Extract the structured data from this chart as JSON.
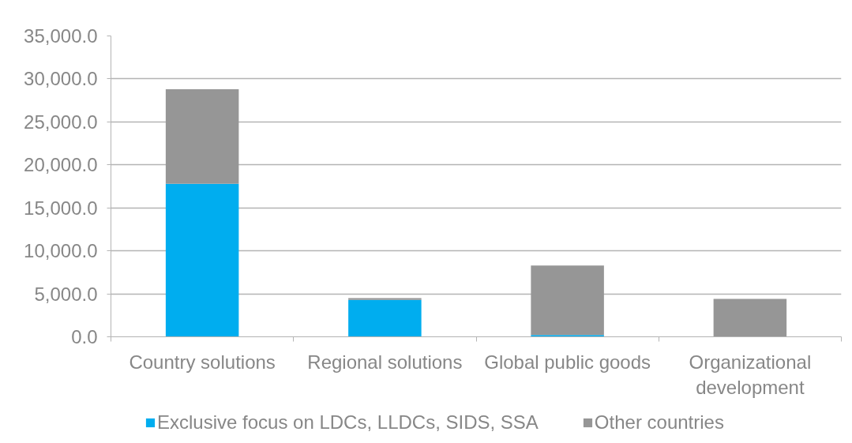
{
  "chart_data": {
    "type": "bar",
    "stacked": true,
    "categories": [
      "Country solutions",
      "Regional solutions",
      "Global public goods",
      "Organizational development"
    ],
    "series": [
      {
        "name": "Exclusive focus on LDCs, LLDCs, SIDS, SSA",
        "color": "#00adef",
        "values": [
          17800,
          4300,
          200,
          0
        ]
      },
      {
        "name": "Other countries",
        "color": "#969696",
        "values": [
          11000,
          200,
          8100,
          4400
        ]
      }
    ],
    "ylim": [
      0,
      35000
    ],
    "yticks": [
      {
        "value": 0,
        "label": "0.0"
      },
      {
        "value": 5000,
        "label": "5,000.0"
      },
      {
        "value": 10000,
        "label": "10,000.0"
      },
      {
        "value": 15000,
        "label": "15,000.0"
      },
      {
        "value": 20000,
        "label": "20,000.0"
      },
      {
        "value": 25000,
        "label": "25,000.0"
      },
      {
        "value": 30000,
        "label": "30,000.0"
      },
      {
        "value": 35000,
        "label": "35,000.0"
      }
    ],
    "grid": "y",
    "legend": "bottom"
  }
}
